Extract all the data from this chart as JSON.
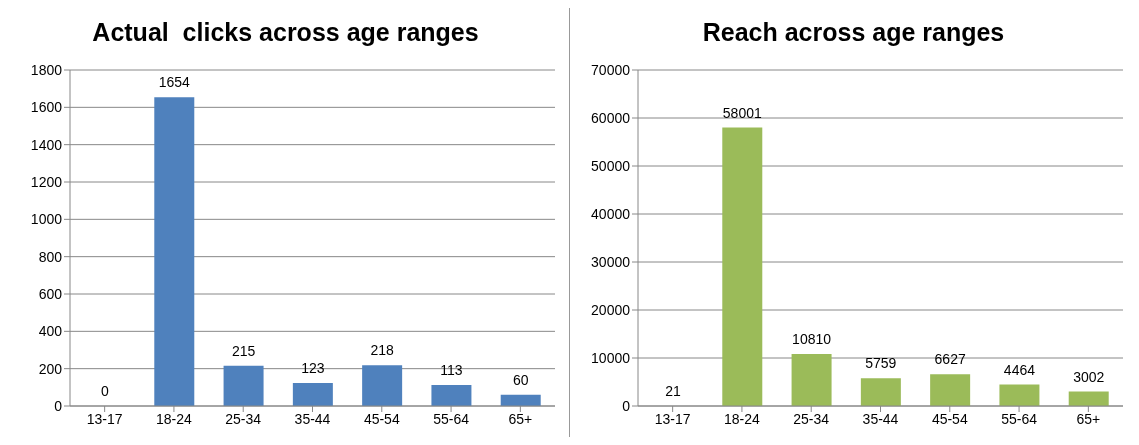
{
  "chart_data": [
    {
      "type": "bar",
      "title": "Actual  clicks across age ranges",
      "categories": [
        "13-17",
        "18-24",
        "25-34",
        "35-44",
        "45-54",
        "55-64",
        "65+"
      ],
      "values": [
        0,
        1654,
        215,
        123,
        218,
        113,
        60
      ],
      "color": "#4f81bd",
      "ylim": [
        0,
        1800
      ],
      "yticks": [
        0,
        200,
        400,
        600,
        800,
        1000,
        1200,
        1400,
        1600,
        1800
      ],
      "grid": "y",
      "data_labels": true,
      "legend": false
    },
    {
      "type": "bar",
      "title": "Reach across age ranges",
      "categories": [
        "13-17",
        "18-24",
        "25-34",
        "35-44",
        "45-54",
        "55-64",
        "65+"
      ],
      "values": [
        21,
        58001,
        10810,
        5759,
        6627,
        4464,
        3002
      ],
      "color": "#9bbb59",
      "ylim": [
        0,
        70000
      ],
      "yticks": [
        0,
        10000,
        20000,
        30000,
        40000,
        50000,
        60000,
        70000
      ],
      "grid": "y",
      "data_labels": true,
      "legend": false
    }
  ]
}
